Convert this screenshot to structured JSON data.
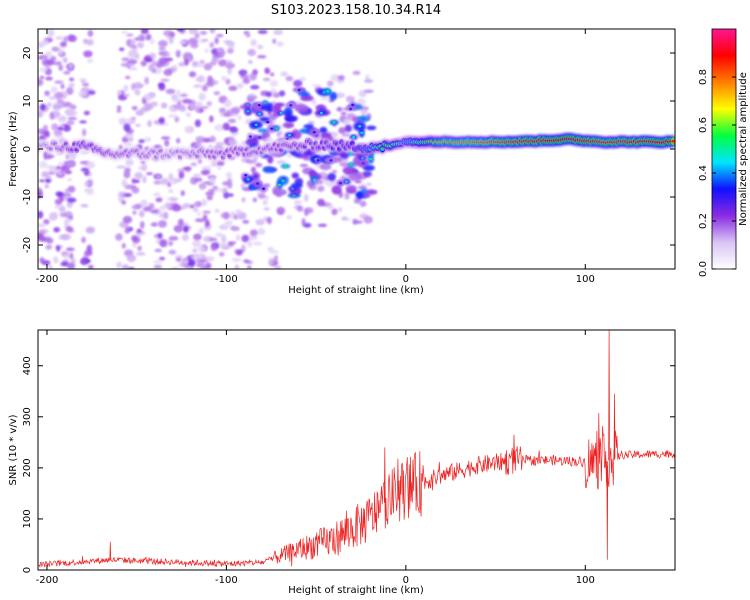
{
  "title": "S103.2023.158.10.34.R14",
  "chart_data": [
    {
      "type": "heatmap",
      "xlabel": "Height of straight line (km)",
      "ylabel": "Frequency (Hz)",
      "xlim": [
        -205,
        150
      ],
      "ylim": [
        -25,
        25
      ],
      "xticks": [
        -200,
        -100,
        0,
        100
      ],
      "yticks": [
        -20,
        -10,
        0,
        10,
        20
      ],
      "colorbar": {
        "label": "Normalized spectral amplitude",
        "range": [
          0,
          1
        ],
        "ticks": [
          "0.0",
          "0.2",
          "0.4",
          "0.6",
          "0.8"
        ],
        "colormap": [
          "#ffffff",
          "#d9c4f5",
          "#8a2be2",
          "#1010ff",
          "#00e5ff",
          "#00ff40",
          "#ffff00",
          "#ff7f00",
          "#ff0000",
          "#ff1493"
        ]
      },
      "ridge": [
        {
          "x": -200,
          "freq": 0.5,
          "amp": 0.2
        },
        {
          "x": -180,
          "freq": 0.5,
          "amp": 0.3
        },
        {
          "x": -165,
          "freq": -1,
          "amp": 0.25
        },
        {
          "x": -130,
          "freq": -1,
          "amp": 0.2
        },
        {
          "x": -100,
          "freq": -1,
          "amp": 0.25
        },
        {
          "x": -80,
          "freq": 0,
          "amp": 0.25
        },
        {
          "x": -50,
          "freq": 1,
          "amp": 0.3
        },
        {
          "x": -30,
          "freq": 0.5,
          "amp": 0.35
        },
        {
          "x": -10,
          "freq": 0.5,
          "amp": 0.6
        },
        {
          "x": 0,
          "freq": 1.5,
          "amp": 0.45
        },
        {
          "x": 20,
          "freq": 1.5,
          "amp": 0.7
        },
        {
          "x": 60,
          "freq": 1.5,
          "amp": 0.85
        },
        {
          "x": 90,
          "freq": 2,
          "amp": 0.9
        },
        {
          "x": 110,
          "freq": 1.5,
          "amp": 0.85
        },
        {
          "x": 150,
          "freq": 1.5,
          "amp": 0.9
        }
      ]
    },
    {
      "type": "line",
      "xlabel": "Height of straight line (km)",
      "ylabel": "SNR (10 * v/v)",
      "xlim": [
        -205,
        150
      ],
      "ylim": [
        0,
        470
      ],
      "xticks": [
        -200,
        -100,
        0,
        100
      ],
      "yticks": [
        0,
        100,
        200,
        300,
        400
      ],
      "series": [
        {
          "color": "#ee2222",
          "trend": [
            {
              "x": -205,
              "y": 10
            },
            {
              "x": -165,
              "y": 20
            },
            {
              "x": -100,
              "y": 12
            },
            {
              "x": -80,
              "y": 15
            },
            {
              "x": -60,
              "y": 40
            },
            {
              "x": -40,
              "y": 60
            },
            {
              "x": -20,
              "y": 100
            },
            {
              "x": -10,
              "y": 140
            },
            {
              "x": 0,
              "y": 160
            },
            {
              "x": 20,
              "y": 185
            },
            {
              "x": 40,
              "y": 205
            },
            {
              "x": 60,
              "y": 215
            },
            {
              "x": 80,
              "y": 215
            },
            {
              "x": 100,
              "y": 212
            },
            {
              "x": 110,
              "y": 210
            },
            {
              "x": 120,
              "y": 225
            },
            {
              "x": 150,
              "y": 228
            }
          ],
          "spikes": [
            {
              "x": -165,
              "y": 55
            },
            {
              "x": -12,
              "y": 240
            },
            {
              "x": 60,
              "y": 265
            },
            {
              "x": 113,
              "y": 470
            },
            {
              "x": 112,
              "y": 20
            },
            {
              "x": 116,
              "y": 345
            }
          ]
        }
      ]
    }
  ]
}
